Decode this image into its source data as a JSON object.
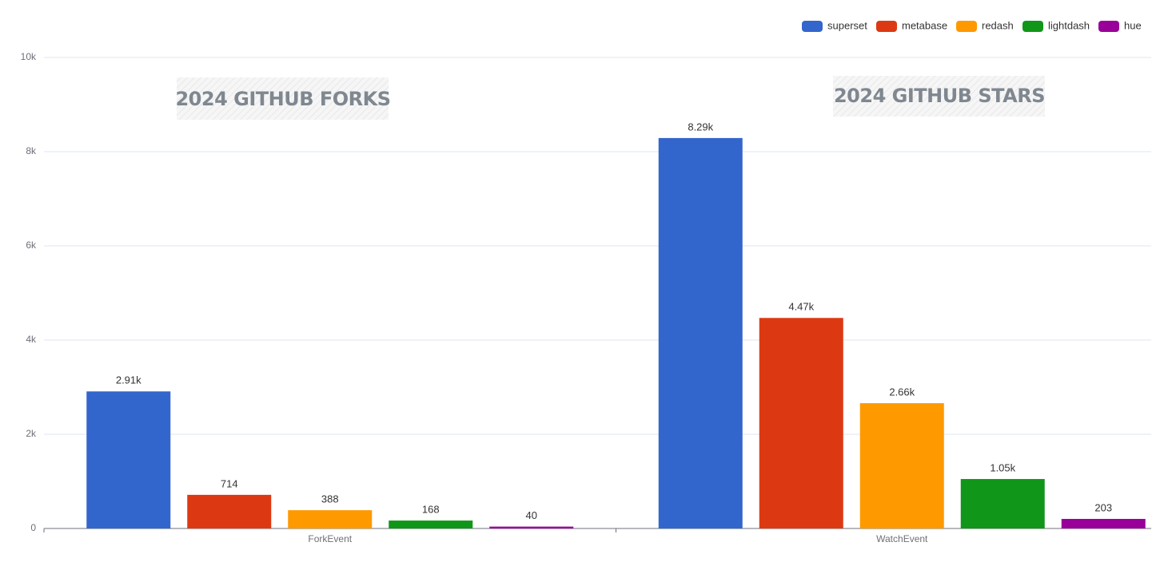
{
  "chart_data": {
    "type": "bar",
    "categories": [
      "ForkEvent",
      "WatchEvent"
    ],
    "annotations": [
      "2024 GITHUB FORKS",
      "2024 GITHUB STARS"
    ],
    "series": [
      {
        "name": "superset",
        "color": "#3366cc",
        "values": [
          2910,
          8290
        ],
        "value_labels": [
          "2.91k",
          "8.29k"
        ]
      },
      {
        "name": "metabase",
        "color": "#dc3912",
        "values": [
          714,
          4470
        ],
        "value_labels": [
          "714",
          "4.47k"
        ]
      },
      {
        "name": "redash",
        "color": "#ff9900",
        "values": [
          388,
          2660
        ],
        "value_labels": [
          "388",
          "2.66k"
        ]
      },
      {
        "name": "lightdash",
        "color": "#109618",
        "values": [
          168,
          1050
        ],
        "value_labels": [
          "168",
          "1.05k"
        ]
      },
      {
        "name": "hue",
        "color": "#990099",
        "values": [
          40,
          203
        ],
        "value_labels": [
          "40",
          "203"
        ]
      }
    ],
    "ylim": [
      0,
      10000
    ],
    "yticks": [
      0,
      {
        "value": 2000,
        "label": "2k"
      },
      {
        "value": 4000,
        "label": "4k"
      },
      {
        "value": 6000,
        "label": "6k"
      },
      {
        "value": 8000,
        "label": "8k"
      },
      {
        "value": 10000,
        "label": "10k"
      }
    ],
    "grid": true,
    "legend": "top-right"
  }
}
